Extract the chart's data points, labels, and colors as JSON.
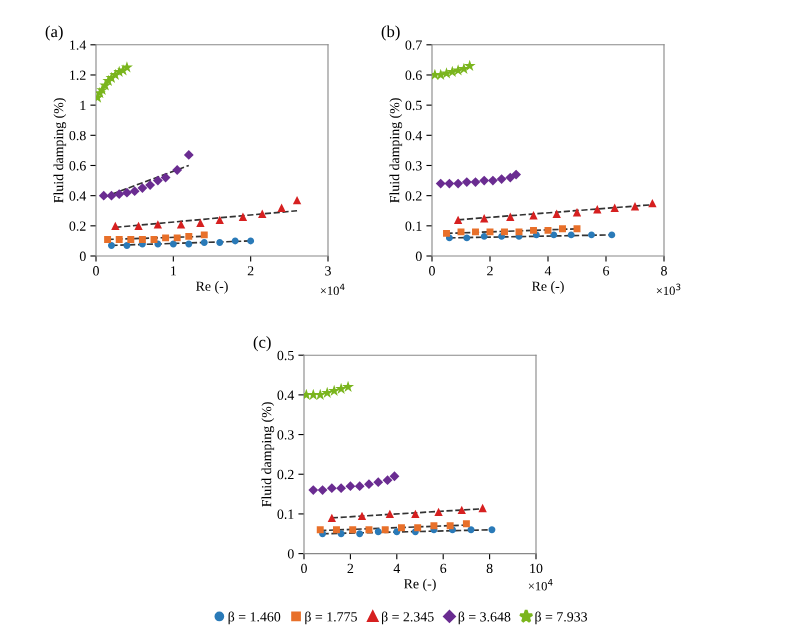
{
  "chart_data": [
    {
      "type": "scatter",
      "title": "(a)",
      "xlabel": "Re (-)",
      "ylabel": "Fluid damping (%)",
      "annotations": [
        "×10$^{4}$"
      ],
      "xlim": [
        0,
        3
      ],
      "xticks": [
        0,
        1,
        2,
        3
      ],
      "ylim": [
        0,
        1.4
      ],
      "yticks": [
        0,
        0.2,
        0.4,
        0.6,
        0.8,
        1,
        1.2,
        1.4
      ],
      "grid": false,
      "legend": false,
      "series": [
        {
          "color": "#2a7ab8",
          "marker": "circle",
          "x": [
            0.2,
            0.4,
            0.6,
            0.8,
            1.0,
            1.2,
            1.4,
            1.6,
            1.8,
            2.0
          ],
          "values": [
            0.07,
            0.07,
            0.08,
            0.08,
            0.08,
            0.08,
            0.09,
            0.09,
            0.1,
            0.1
          ]
        },
        {
          "color": "#e8702a",
          "marker": "square",
          "x": [
            0.15,
            0.3,
            0.45,
            0.6,
            0.75,
            0.9,
            1.05,
            1.2,
            1.4
          ],
          "values": [
            0.11,
            0.11,
            0.11,
            0.11,
            0.11,
            0.12,
            0.12,
            0.13,
            0.14
          ]
        },
        {
          "color": "#d62020",
          "marker": "triangle",
          "x": [
            0.25,
            0.55,
            0.8,
            1.1,
            1.35,
            1.6,
            1.9,
            2.15,
            2.4,
            2.6
          ],
          "values": [
            0.2,
            0.2,
            0.21,
            0.21,
            0.22,
            0.24,
            0.26,
            0.28,
            0.32,
            0.37
          ]
        },
        {
          "color": "#6a2c91",
          "marker": "diamond",
          "x": [
            0.1,
            0.2,
            0.3,
            0.4,
            0.5,
            0.6,
            0.7,
            0.8,
            0.9,
            1.05,
            1.2
          ],
          "values": [
            0.4,
            0.4,
            0.41,
            0.42,
            0.43,
            0.45,
            0.47,
            0.5,
            0.52,
            0.57,
            0.67
          ]
        },
        {
          "color": "#7ab51d",
          "marker": "star",
          "x": [
            0.02,
            0.05,
            0.08,
            0.12,
            0.16,
            0.2,
            0.25,
            0.3,
            0.35,
            0.4
          ],
          "values": [
            1.05,
            1.08,
            1.1,
            1.13,
            1.16,
            1.18,
            1.2,
            1.22,
            1.23,
            1.25
          ]
        },
        {
          "type": "line",
          "line_style": "dashed",
          "color": "#333333",
          "x": [
            0.2,
            2.0
          ],
          "values": [
            0.07,
            0.1
          ]
        },
        {
          "type": "line",
          "line_style": "dashed",
          "color": "#333333",
          "x": [
            0.15,
            1.4
          ],
          "values": [
            0.11,
            0.13
          ]
        },
        {
          "type": "line",
          "line_style": "dashed",
          "color": "#333333",
          "x": [
            0.25,
            2.6
          ],
          "values": [
            0.19,
            0.3
          ]
        },
        {
          "type": "line",
          "line_style": "dashed",
          "color": "#333333",
          "x": [
            0.1,
            1.2
          ],
          "values": [
            0.39,
            0.6
          ]
        }
      ]
    },
    {
      "type": "scatter",
      "title": "(b)",
      "xlabel": "Re (-)",
      "ylabel": "Fluid damping (%)",
      "annotations": [
        "×10$^{3}$"
      ],
      "xlim": [
        0,
        8
      ],
      "xticks": [
        0,
        2,
        4,
        6,
        8
      ],
      "ylim": [
        0,
        0.7
      ],
      "yticks": [
        0,
        0.1,
        0.2,
        0.3,
        0.4,
        0.5,
        0.6,
        0.7
      ],
      "grid": false,
      "legend": false,
      "series": [
        {
          "color": "#2a7ab8",
          "marker": "circle",
          "x": [
            0.6,
            1.2,
            1.8,
            2.4,
            3.0,
            3.6,
            4.2,
            4.8,
            5.5,
            6.2
          ],
          "values": [
            0.06,
            0.06,
            0.065,
            0.065,
            0.065,
            0.07,
            0.07,
            0.07,
            0.07,
            0.07
          ]
        },
        {
          "color": "#e8702a",
          "marker": "square",
          "x": [
            0.5,
            1.0,
            1.5,
            2.0,
            2.5,
            3.0,
            3.5,
            4.0,
            4.5,
            5.0
          ],
          "values": [
            0.075,
            0.08,
            0.08,
            0.08,
            0.08,
            0.08,
            0.085,
            0.085,
            0.09,
            0.09
          ]
        },
        {
          "color": "#d62020",
          "marker": "triangle",
          "x": [
            0.9,
            1.8,
            2.7,
            3.5,
            4.3,
            5.0,
            5.7,
            6.3,
            7.0,
            7.6
          ],
          "values": [
            0.12,
            0.125,
            0.13,
            0.135,
            0.14,
            0.145,
            0.155,
            0.16,
            0.165,
            0.175
          ]
        },
        {
          "color": "#6a2c91",
          "marker": "diamond",
          "x": [
            0.3,
            0.6,
            0.9,
            1.2,
            1.5,
            1.8,
            2.1,
            2.4,
            2.7,
            2.9
          ],
          "values": [
            0.24,
            0.24,
            0.24,
            0.245,
            0.245,
            0.25,
            0.25,
            0.255,
            0.26,
            0.27
          ]
        },
        {
          "color": "#7ab51d",
          "marker": "star",
          "x": [
            0.1,
            0.3,
            0.5,
            0.7,
            0.9,
            1.1,
            1.3
          ],
          "values": [
            0.6,
            0.6,
            0.605,
            0.61,
            0.615,
            0.62,
            0.63
          ]
        },
        {
          "type": "line",
          "line_style": "dashed",
          "color": "#333333",
          "x": [
            0.6,
            6.2
          ],
          "values": [
            0.06,
            0.07
          ]
        },
        {
          "type": "line",
          "line_style": "dashed",
          "color": "#333333",
          "x": [
            0.5,
            5.0
          ],
          "values": [
            0.075,
            0.09
          ]
        },
        {
          "type": "line",
          "line_style": "dashed",
          "color": "#333333",
          "x": [
            0.9,
            7.6
          ],
          "values": [
            0.12,
            0.17
          ]
        }
      ]
    },
    {
      "type": "scatter",
      "title": "(c)",
      "xlabel": "Re (-)",
      "ylabel": "Fluid damping (%)",
      "annotations": [
        "×10$^{4}$"
      ],
      "xlim": [
        0,
        10
      ],
      "xticks": [
        0,
        2,
        4,
        6,
        8,
        10
      ],
      "ylim": [
        0,
        0.5
      ],
      "yticks": [
        0,
        0.1,
        0.2,
        0.3,
        0.4,
        0.5
      ],
      "grid": false,
      "legend": "bottom",
      "series": [
        {
          "name": "β = 1.460",
          "color": "#2a7ab8",
          "marker": "circle",
          "x": [
            0.8,
            1.6,
            2.4,
            3.2,
            4.0,
            4.8,
            5.6,
            6.4,
            7.2,
            8.1
          ],
          "values": [
            0.05,
            0.05,
            0.05,
            0.055,
            0.055,
            0.055,
            0.06,
            0.06,
            0.06,
            0.06
          ]
        },
        {
          "name": "β = 1.775",
          "color": "#e8702a",
          "marker": "square",
          "x": [
            0.7,
            1.4,
            2.1,
            2.8,
            3.5,
            4.2,
            4.9,
            5.6,
            6.3,
            7.0
          ],
          "values": [
            0.06,
            0.06,
            0.06,
            0.06,
            0.06,
            0.065,
            0.065,
            0.07,
            0.07,
            0.075
          ]
        },
        {
          "name": "β = 2.345",
          "color": "#d62020",
          "marker": "triangle",
          "x": [
            1.2,
            2.5,
            3.7,
            4.8,
            5.8,
            6.8,
            7.7
          ],
          "values": [
            0.09,
            0.095,
            0.1,
            0.1,
            0.105,
            0.11,
            0.115
          ]
        },
        {
          "name": "β = 3.648",
          "color": "#6a2c91",
          "marker": "diamond",
          "x": [
            0.4,
            0.8,
            1.2,
            1.6,
            2.0,
            2.4,
            2.8,
            3.2,
            3.6,
            3.9
          ],
          "values": [
            0.16,
            0.16,
            0.165,
            0.165,
            0.17,
            0.17,
            0.175,
            0.18,
            0.185,
            0.195
          ]
        },
        {
          "name": "β = 7.933",
          "color": "#7ab51d",
          "marker": "star",
          "x": [
            0.1,
            0.4,
            0.7,
            1.0,
            1.3,
            1.6,
            1.9
          ],
          "values": [
            0.4,
            0.4,
            0.4,
            0.405,
            0.41,
            0.415,
            0.42
          ]
        },
        {
          "type": "line",
          "line_style": "dashed",
          "color": "#333333",
          "x": [
            0.8,
            8.1
          ],
          "values": [
            0.05,
            0.06
          ]
        },
        {
          "type": "line",
          "line_style": "dashed",
          "color": "#333333",
          "x": [
            0.7,
            7.0
          ],
          "values": [
            0.058,
            0.072
          ]
        },
        {
          "type": "line",
          "line_style": "dashed",
          "color": "#333333",
          "x": [
            1.2,
            7.7
          ],
          "values": [
            0.09,
            0.113
          ]
        }
      ]
    }
  ]
}
